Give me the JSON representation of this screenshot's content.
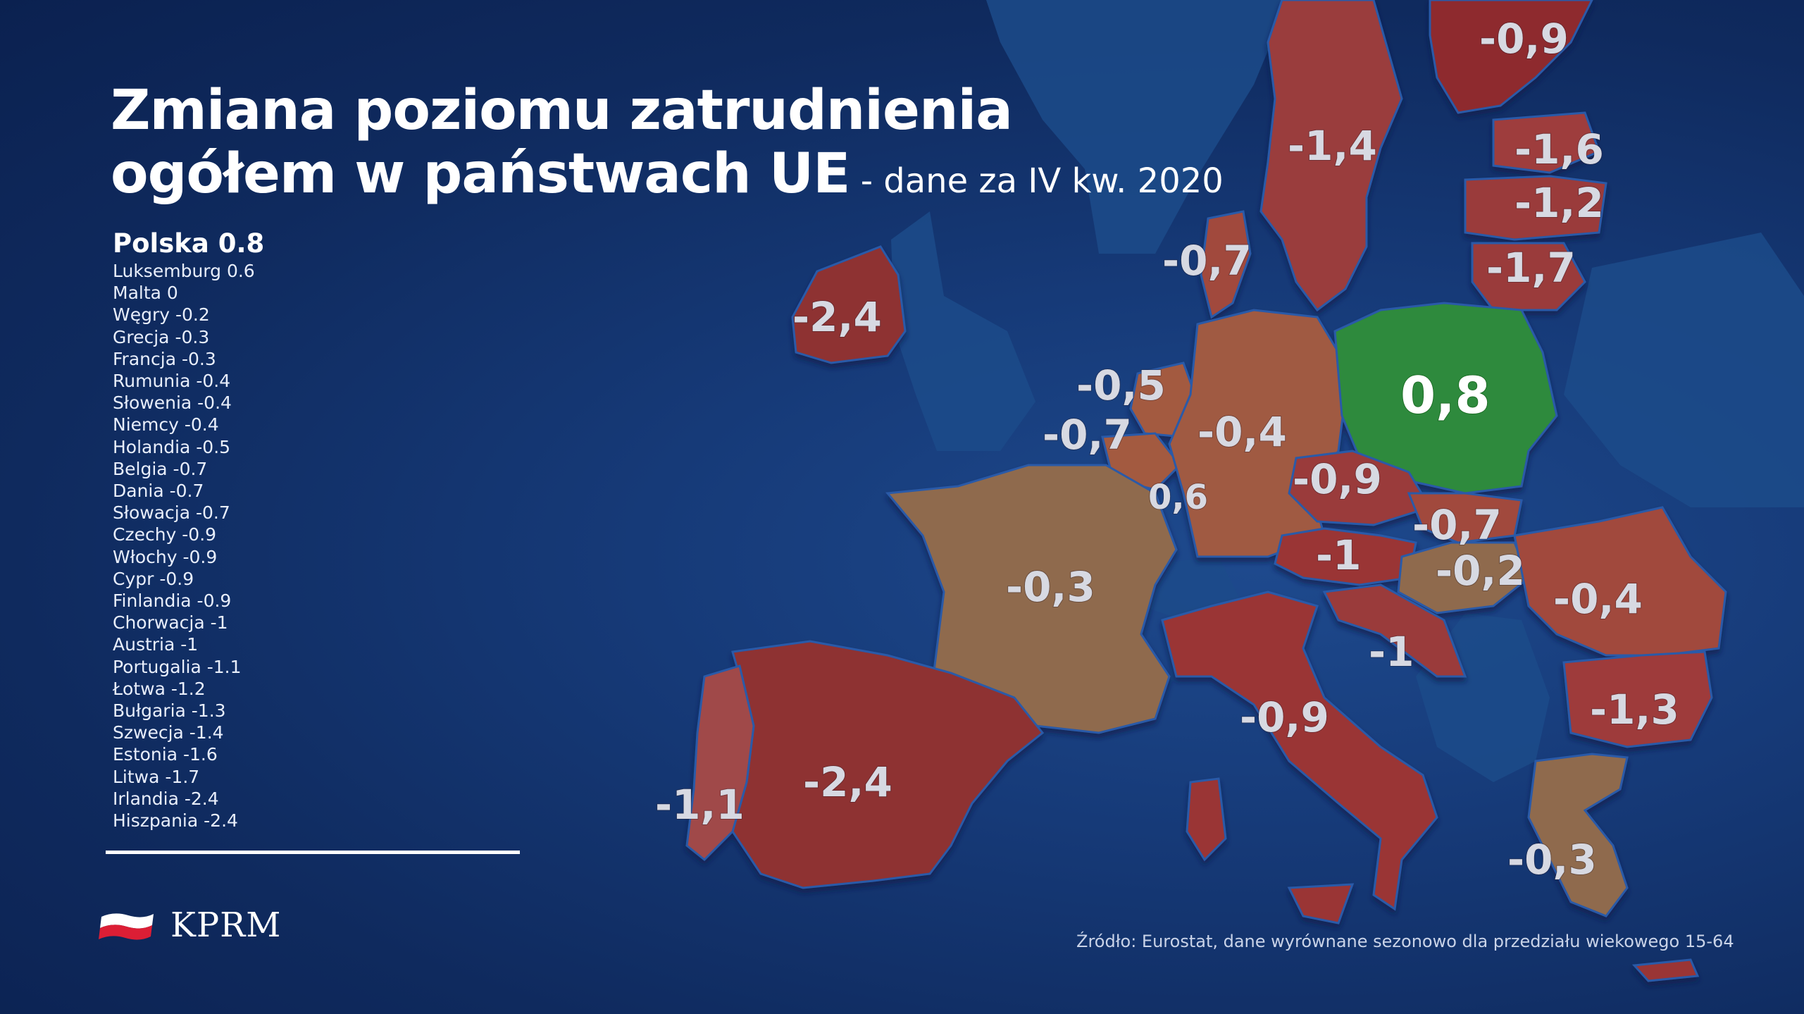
{
  "title": {
    "line1": "Zmiana poziomu zatrudnienia",
    "line2": "ogółem w państwach UE",
    "subtitle": " - dane za IV kw. 2020"
  },
  "legend": {
    "highlight": "Polska 0.8",
    "items": [
      "Luksemburg 0.6",
      "Malta 0",
      "Węgry -0.2",
      "Grecja -0.3",
      "Francja -0.3",
      "Rumunia -0.4",
      "Słowenia -0.4",
      "Niemcy -0.4",
      "Holandia -0.5",
      "Belgia -0.7",
      "Dania -0.7",
      "Słowacja -0.7",
      "Czechy -0.9",
      "Włochy -0.9",
      "Cypr -0.9",
      "Finlandia -0.9",
      "Chorwacja -1",
      "Austria -1",
      "Portugalia -1.1",
      "Łotwa -1.2",
      "Bułgaria -1.3",
      "Szwecja -1.4",
      "Estonia -1.6",
      "Litwa -1.7",
      "Irlandia -2.4",
      "Hiszpania -2.4"
    ]
  },
  "map_labels": {
    "finland": "-0,9",
    "sweden": "-1,4",
    "estonia": "-1,6",
    "latvia": "-1,2",
    "lithuania": "-1,7",
    "denmark": "-0,7",
    "ireland": "-2,4",
    "netherlands": "-0,5",
    "belgium": "-0,7",
    "germany": "-0,4",
    "poland": "0,8",
    "czechia": "-0,9",
    "luxembourg": "0,6",
    "slovakia": "-0,7",
    "austria": "-1",
    "hungary": "-0,2",
    "france": "-0,3",
    "romania": "-0,4",
    "croatia": "-1",
    "italy": "-0,9",
    "bulgaria": "-1,3",
    "portugal": "-1,1",
    "spain": "-2,4",
    "greece": "-0,3"
  },
  "colors": {
    "background": "#163a78",
    "sea": "#173f80",
    "positive": "#2e8a3e",
    "slight_negative": "#8f6b4e",
    "moderate_negative": "#a0503e",
    "strong_negative": "#8e3133",
    "non_eu_land": "#1c4b8a"
  },
  "logo": {
    "text": "KPRM",
    "icon": "polish-flag-icon"
  },
  "source": "Źródło: Eurostat, dane wyrównane sezonowo dla przedziału wiekowego 15-64"
}
